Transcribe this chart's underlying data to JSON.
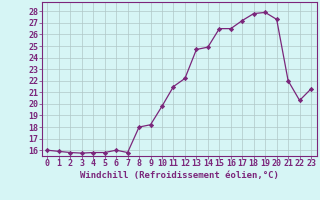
{
  "x": [
    0,
    1,
    2,
    3,
    4,
    5,
    6,
    7,
    8,
    9,
    10,
    11,
    12,
    13,
    14,
    15,
    16,
    17,
    18,
    19,
    20,
    21,
    22,
    23
  ],
  "y": [
    16.0,
    15.9,
    15.8,
    15.75,
    15.8,
    15.8,
    16.0,
    15.8,
    18.0,
    18.2,
    19.8,
    21.5,
    22.2,
    24.7,
    24.9,
    26.5,
    26.5,
    27.2,
    27.8,
    27.9,
    27.3,
    22.0,
    20.3,
    21.3
  ],
  "line_color": "#7B267B",
  "marker": "D",
  "marker_size": 2.2,
  "bg_color": "#d6f5f5",
  "grid_color": "#b0c8c8",
  "xlabel": "Windchill (Refroidissement éolien,°C)",
  "xlabel_color": "#7B267B",
  "ylabel_ticks": [
    16,
    17,
    18,
    19,
    20,
    21,
    22,
    23,
    24,
    25,
    26,
    27,
    28
  ],
  "xtick_labels": [
    "0",
    "1",
    "2",
    "3",
    "4",
    "5",
    "6",
    "7",
    "8",
    "9",
    "10",
    "11",
    "12",
    "13",
    "14",
    "15",
    "16",
    "17",
    "18",
    "19",
    "20",
    "21",
    "22",
    "23"
  ],
  "ylim": [
    15.5,
    28.8
  ],
  "xlim": [
    -0.5,
    23.5
  ],
  "tick_fontsize": 6.0,
  "xlabel_fontsize": 6.5
}
